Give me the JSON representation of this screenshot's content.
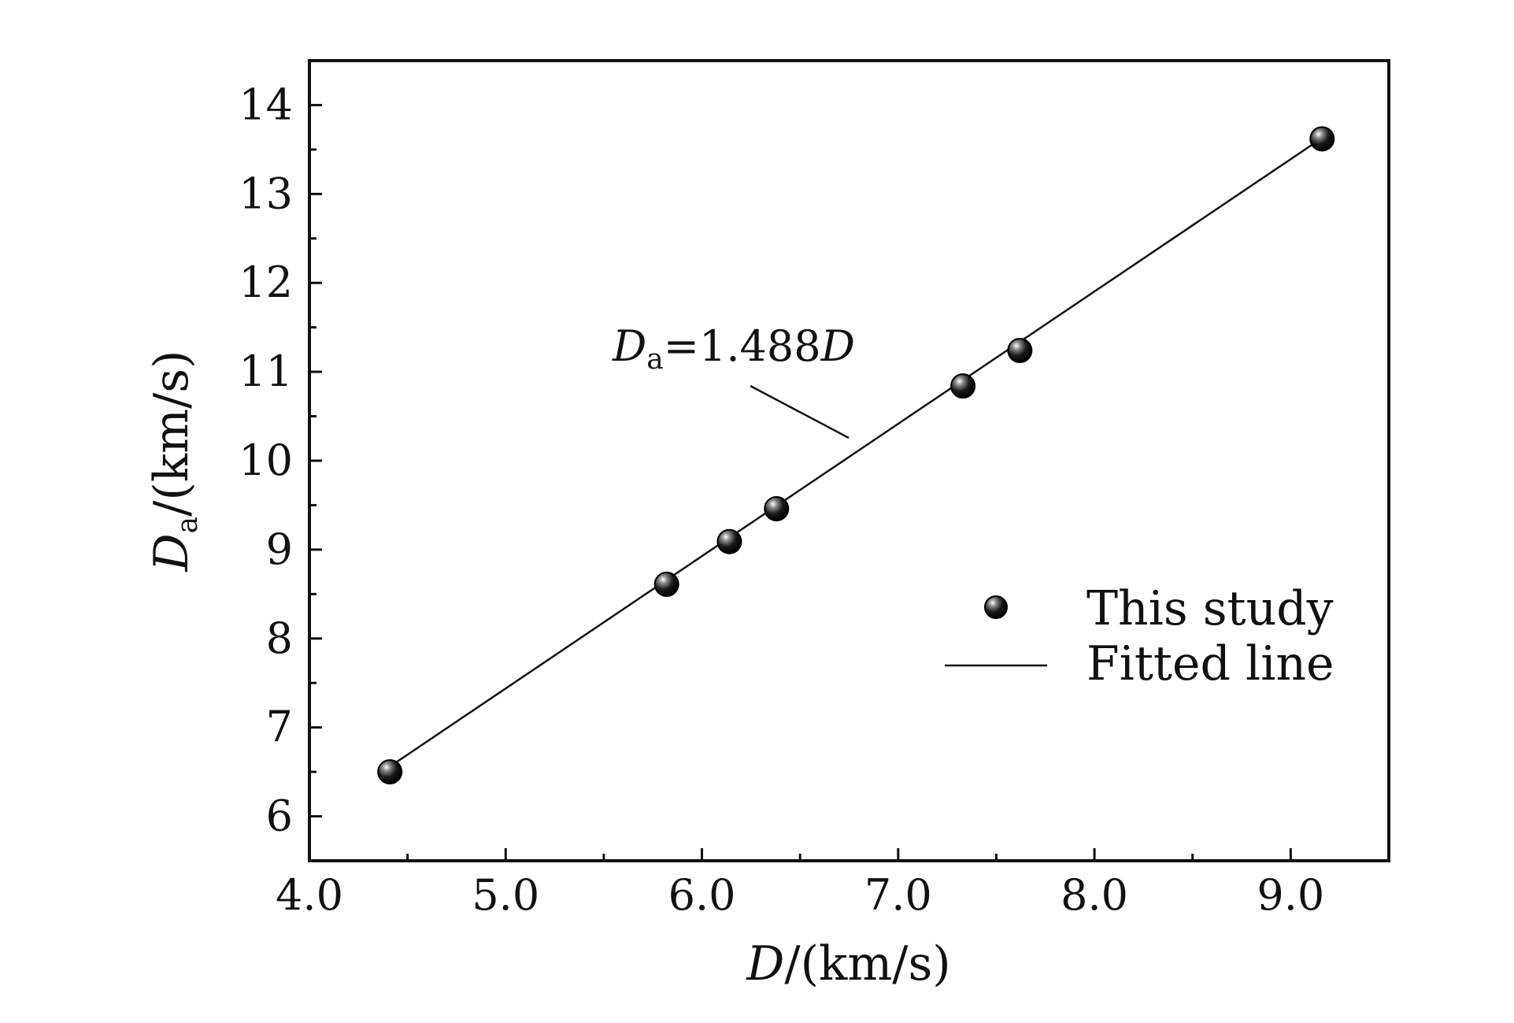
{
  "chart_data": {
    "type": "scatter",
    "title": "",
    "xlabel": {
      "var": "D",
      "unit": "/(km/s)"
    },
    "ylabel": {
      "var": "D",
      "sub": "a",
      "unit": "/(km/s)"
    },
    "xlim": [
      4.0,
      9.5
    ],
    "ylim": [
      5.5,
      14.5
    ],
    "xticks": [
      4.0,
      5.0,
      6.0,
      7.0,
      8.0,
      9.0
    ],
    "xtick_labels": [
      "4.0",
      "5.0",
      "6.0",
      "7.0",
      "8.0",
      "9.0"
    ],
    "yticks": [
      6,
      7,
      8,
      9,
      10,
      11,
      12,
      13,
      14
    ],
    "ytick_labels": [
      "6",
      "7",
      "8",
      "9",
      "10",
      "11",
      "12",
      "13",
      "14"
    ],
    "grid": false,
    "series": [
      {
        "name": "This study",
        "kind": "scatter",
        "x": [
          4.41,
          5.82,
          6.14,
          6.38,
          7.33,
          7.62,
          9.16
        ],
        "y": [
          6.5,
          8.61,
          9.09,
          9.46,
          10.84,
          11.24,
          13.62
        ]
      },
      {
        "name": "Fitted line",
        "kind": "line",
        "x": [
          4.41,
          9.16
        ],
        "y": [
          6.56,
          13.63
        ]
      }
    ],
    "annotation": {
      "var": "D",
      "sub": "a",
      "rest": "=1.488",
      "var2": "D"
    },
    "legend_position": "lower-right",
    "colors": {
      "marker": "#111111",
      "line": "#111111"
    }
  }
}
